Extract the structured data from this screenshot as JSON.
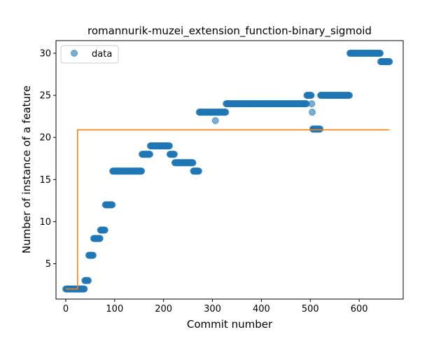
{
  "chart_data": {
    "type": "scatter",
    "title": "romannurik-muzei_extension_function-binary_sigmoid",
    "xlabel": "Commit number",
    "ylabel": "Number of instance of a feature",
    "xlim": [
      -20,
      690
    ],
    "ylim": [
      0.8,
      31.5
    ],
    "xticks": [
      "0",
      "100",
      "200",
      "300",
      "400",
      "500",
      "600"
    ],
    "yticks": [
      "5",
      "10",
      "15",
      "20",
      "25",
      "30"
    ],
    "legend": {
      "placement": "top-left",
      "entries": [
        "data"
      ]
    },
    "grid": false,
    "series": [
      {
        "name": "data",
        "kind": "scatter",
        "color": "#1f77b4",
        "opacity": 0.6,
        "runs": [
          {
            "x_start": 0,
            "x_end": 38,
            "y": 2
          },
          {
            "x_start": 39,
            "x_end": 46,
            "y": 3
          },
          {
            "x_start": 47,
            "x_end": 56,
            "y": 6
          },
          {
            "x_start": 57,
            "x_end": 70,
            "y": 8
          },
          {
            "x_start": 71,
            "x_end": 80,
            "y": 9
          },
          {
            "x_start": 81,
            "x_end": 95,
            "y": 12
          },
          {
            "x_start": 96,
            "x_end": 155,
            "y": 16
          },
          {
            "x_start": 156,
            "x_end": 172,
            "y": 18
          },
          {
            "x_start": 173,
            "x_end": 212,
            "y": 19
          },
          {
            "x_start": 213,
            "x_end": 222,
            "y": 18
          },
          {
            "x_start": 223,
            "x_end": 260,
            "y": 17
          },
          {
            "x_start": 261,
            "x_end": 272,
            "y": 16
          },
          {
            "x_start": 273,
            "x_end": 305,
            "y": 23
          },
          {
            "x_start": 306,
            "x_end": 306,
            "y": 22
          },
          {
            "x_start": 307,
            "x_end": 327,
            "y": 23
          },
          {
            "x_start": 328,
            "x_end": 492,
            "y": 24
          },
          {
            "x_start": 493,
            "x_end": 502,
            "y": 25
          },
          {
            "x_start": 503,
            "x_end": 503,
            "y": 24
          },
          {
            "x_start": 504,
            "x_end": 504,
            "y": 23
          },
          {
            "x_start": 505,
            "x_end": 520,
            "y": 21
          },
          {
            "x_start": 521,
            "x_end": 580,
            "y": 25
          },
          {
            "x_start": 581,
            "x_end": 643,
            "y": 30
          },
          {
            "x_start": 644,
            "x_end": 662,
            "y": 29
          }
        ]
      },
      {
        "kind": "line",
        "color": "#ff7f0e",
        "x": [
          0,
          24,
          24,
          662
        ],
        "y": [
          2,
          2,
          20.9,
          20.9
        ]
      }
    ]
  }
}
